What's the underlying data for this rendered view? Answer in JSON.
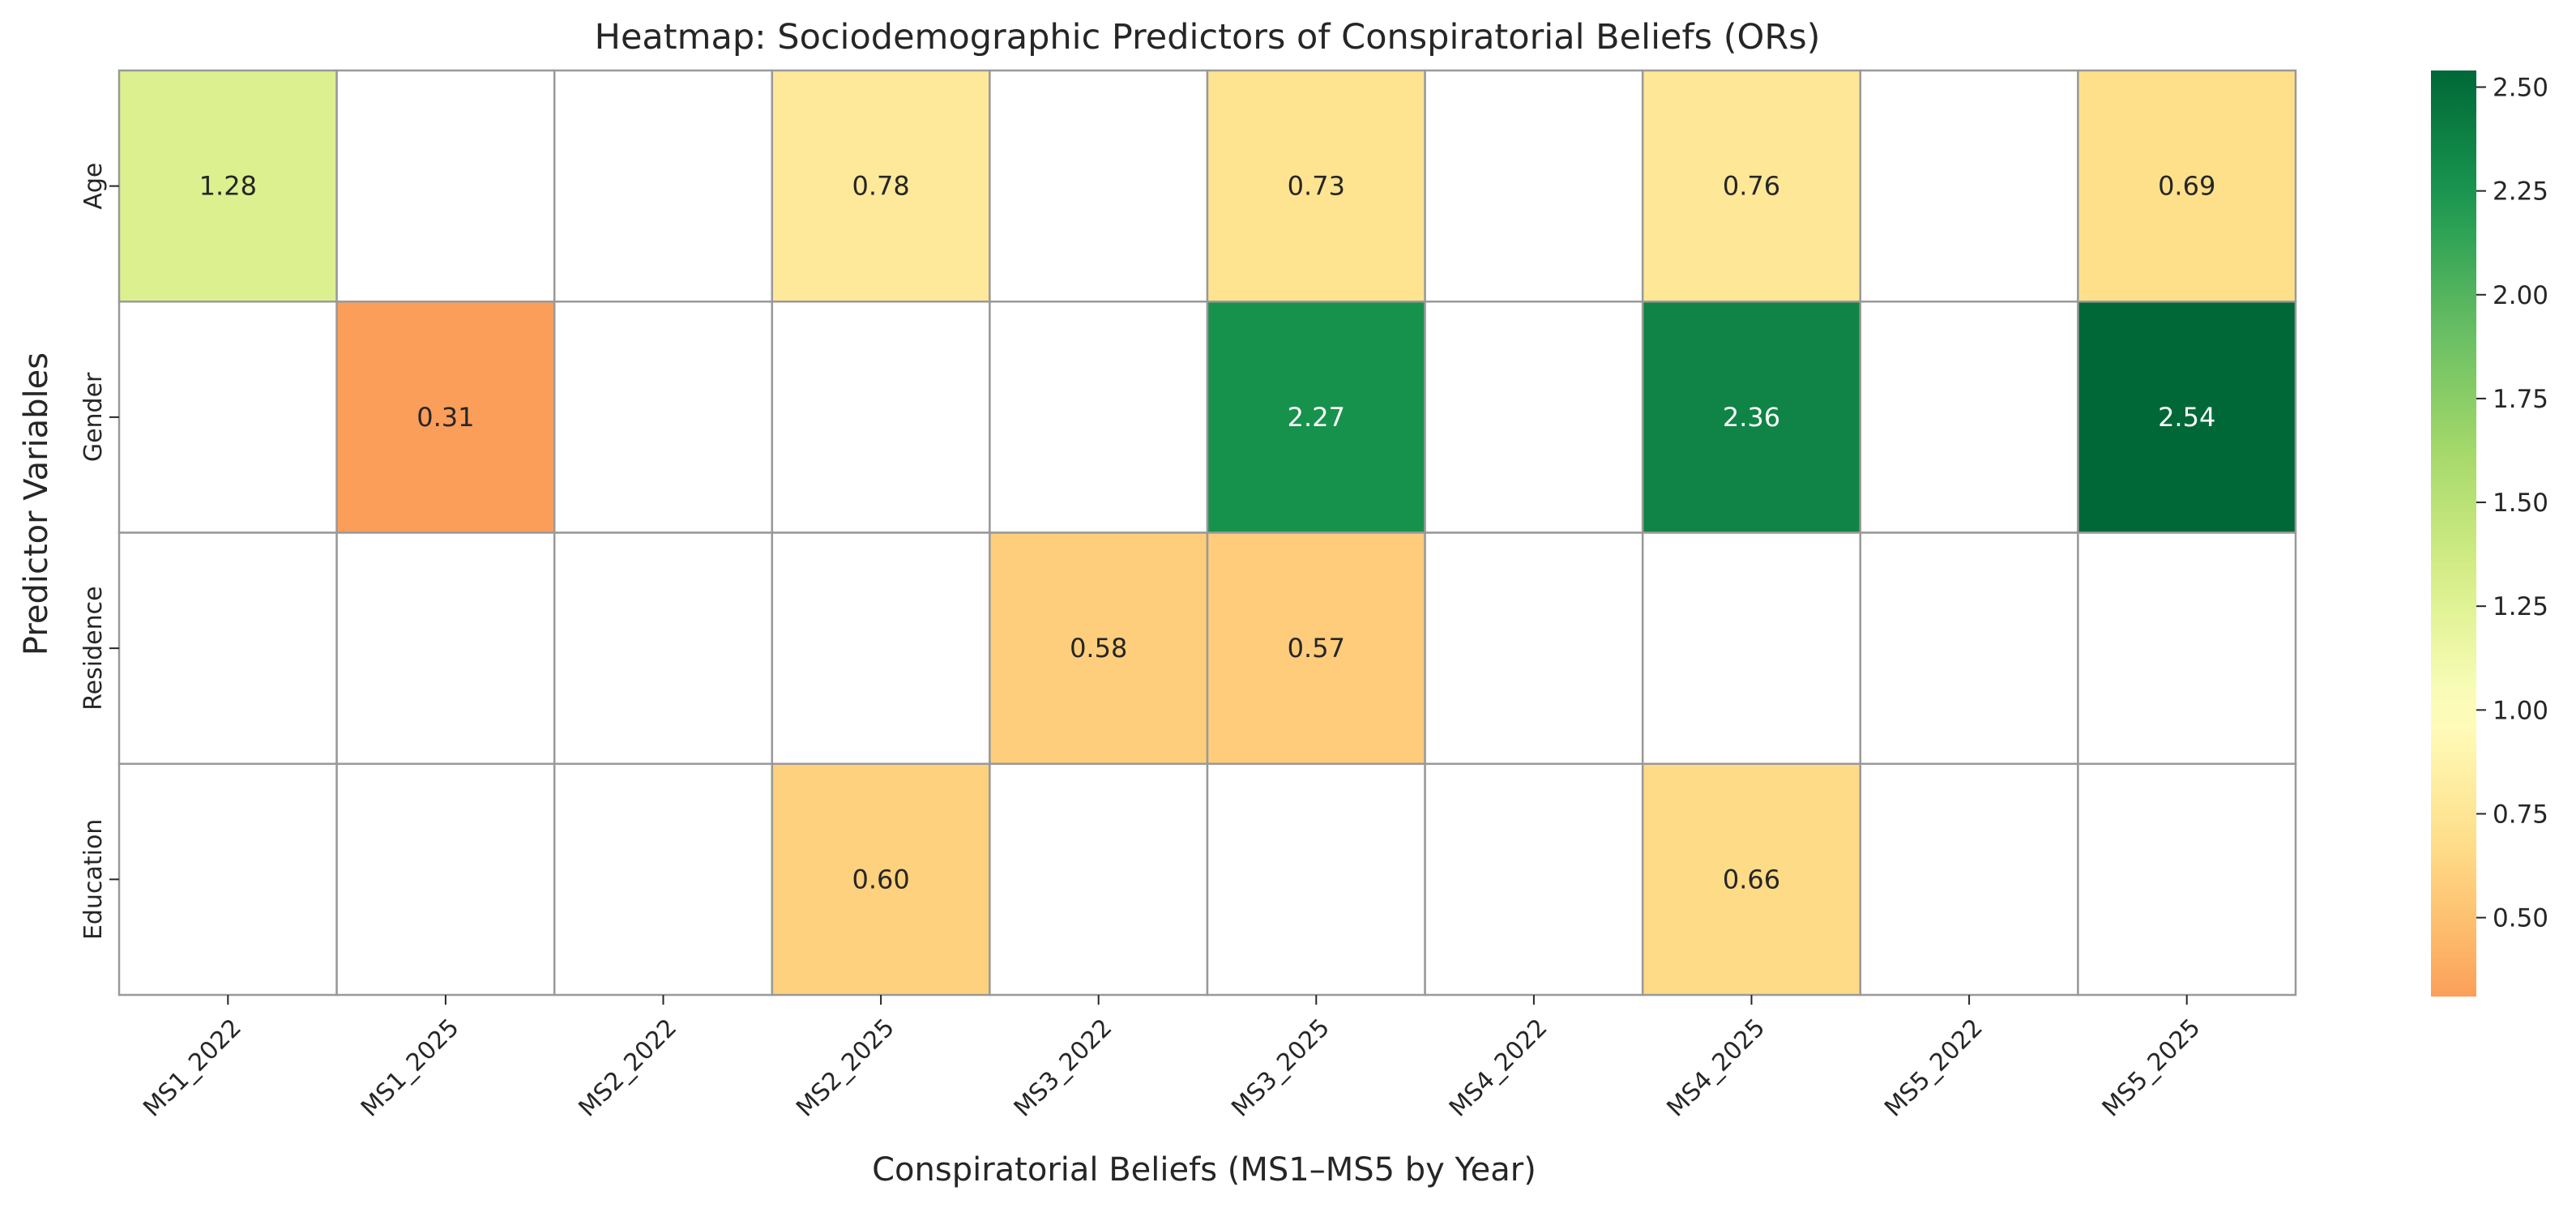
{
  "chart_data": {
    "type": "heatmap",
    "title": "Heatmap: Sociodemographic Predictors of Conspiratorial Beliefs (ORs)",
    "xlabel": "Conspiratorial Beliefs (MS1–MS5 by Year)",
    "ylabel": "Predictor Variables",
    "x_categories": [
      "MS1_2022",
      "MS1_2025",
      "MS2_2022",
      "MS2_2025",
      "MS3_2022",
      "MS3_2025",
      "MS4_2022",
      "MS4_2025",
      "MS5_2022",
      "MS5_2025"
    ],
    "y_categories": [
      "Age",
      "Gender",
      "Residence",
      "Education"
    ],
    "values": [
      [
        1.28,
        null,
        null,
        0.78,
        null,
        0.73,
        null,
        0.76,
        null,
        0.69
      ],
      [
        null,
        0.31,
        null,
        null,
        null,
        2.27,
        null,
        2.36,
        null,
        2.54
      ],
      [
        null,
        null,
        null,
        null,
        0.58,
        0.57,
        null,
        null,
        null,
        null
      ],
      [
        null,
        null,
        null,
        0.6,
        null,
        null,
        null,
        0.66,
        null,
        null
      ]
    ],
    "value_labels": [
      [
        "1.28",
        "",
        "",
        "0.78",
        "",
        "0.73",
        "",
        "0.76",
        "",
        "0.69"
      ],
      [
        "",
        "0.31",
        "",
        "",
        "",
        "2.27",
        "",
        "2.36",
        "",
        "2.54"
      ],
      [
        "",
        "",
        "",
        "",
        "0.58",
        "0.57",
        "",
        "",
        "",
        ""
      ],
      [
        "",
        "",
        "",
        "0.60",
        "",
        "",
        "",
        "0.66",
        "",
        ""
      ]
    ],
    "colormap": "RdYlGn",
    "colormap_stops": [
      "#a50026",
      "#d73027",
      "#f46d43",
      "#fdae61",
      "#fee08b",
      "#ffffbf",
      "#d9ef8b",
      "#a6d96a",
      "#66bd63",
      "#1a9850",
      "#006837"
    ],
    "color_range": [
      0.31,
      2.54
    ],
    "norm_center": 1.0,
    "colorbar_ticks": [
      0.5,
      0.75,
      1.0,
      1.25,
      1.5,
      1.75,
      2.0,
      2.25,
      2.5
    ],
    "colorbar_tick_labels": [
      "0.50",
      "0.75",
      "1.00",
      "1.25",
      "1.50",
      "1.75",
      "2.00",
      "2.25",
      "2.50"
    ],
    "cell_border_color": "#999999",
    "annotation_text_dark": "#262626",
    "annotation_text_light": "#ffffff"
  }
}
